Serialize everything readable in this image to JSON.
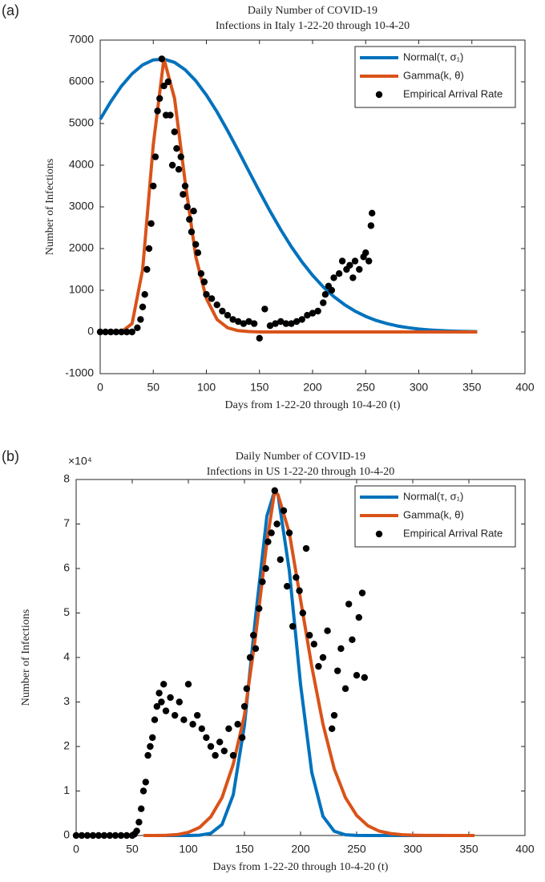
{
  "chart_data": [
    {
      "type": "line",
      "panel": "(a)",
      "title": [
        "Daily Number of COVID-19",
        "Infections in Italy 1-22-20 through 10-4-20"
      ],
      "x_label": "Days from 1-22-20 through 10-4-20 (t)",
      "y_label": "Number of Infections",
      "xlim": [
        0,
        400
      ],
      "xticks": [
        0,
        50,
        100,
        150,
        200,
        250,
        300,
        350,
        400
      ],
      "ylim": [
        -1000,
        7000
      ],
      "yticks": [
        -1000,
        0,
        1000,
        2000,
        3000,
        4000,
        5000,
        6000,
        7000
      ],
      "legend": "upper right",
      "series": [
        {
          "name": "Normal(τ, σ₁)",
          "color": "#0072BD",
          "type": "line",
          "x": [
            0,
            10,
            20,
            30,
            40,
            50,
            60,
            70,
            80,
            90,
            100,
            110,
            120,
            130,
            140,
            150,
            160,
            170,
            180,
            190,
            200,
            210,
            220,
            230,
            240,
            250,
            260,
            270,
            280,
            290,
            300,
            310,
            320,
            330,
            340,
            350,
            355
          ],
          "values": [
            5100,
            5527,
            5896,
            6193,
            6406,
            6525,
            6545,
            6465,
            6289,
            6023,
            5681,
            5277,
            4826,
            4347,
            3855,
            3367,
            2896,
            2452,
            2045,
            1679,
            1358,
            1081,
            848,
            655,
            498,
            373,
            275,
            200,
            143,
            101,
            70,
            48,
            32,
            21,
            14,
            9,
            7
          ]
        },
        {
          "name": "Gamma(k, θ)",
          "color": "#D95319",
          "type": "line",
          "x": [
            0,
            10,
            20,
            30,
            40,
            50,
            60,
            70,
            80,
            90,
            100,
            110,
            120,
            130,
            140,
            150,
            200,
            250,
            300,
            355
          ],
          "values": [
            0,
            0,
            0,
            200,
            1500,
            4500,
            6550,
            5600,
            3600,
            1800,
            800,
            300,
            100,
            30,
            10,
            0,
            0,
            0,
            0,
            0
          ]
        },
        {
          "name": "Empirical Arrival Rate",
          "color": "#000000",
          "type": "scatter",
          "x": [
            0,
            5,
            10,
            15,
            20,
            25,
            30,
            35,
            38,
            40,
            42,
            44,
            46,
            48,
            50,
            52,
            54,
            56,
            58,
            60,
            62,
            64,
            66,
            68,
            70,
            72,
            74,
            76,
            78,
            80,
            82,
            84,
            86,
            88,
            90,
            92,
            95,
            98,
            100,
            105,
            110,
            115,
            120,
            125,
            130,
            135,
            140,
            145,
            150,
            155,
            160,
            165,
            170,
            175,
            180,
            185,
            190,
            195,
            200,
            205,
            210,
            212,
            215,
            218,
            220,
            225,
            228,
            232,
            235,
            238,
            240,
            244,
            248,
            250,
            253,
            255,
            256
          ],
          "values": [
            0,
            0,
            0,
            0,
            0,
            0,
            0,
            100,
            300,
            600,
            900,
            1500,
            2000,
            2600,
            3500,
            4200,
            5300,
            5600,
            6550,
            5900,
            5200,
            6000,
            5200,
            4000,
            4800,
            4400,
            3900,
            4200,
            3300,
            3500,
            3000,
            2700,
            2400,
            2900,
            2100,
            1900,
            1400,
            1200,
            900,
            800,
            650,
            500,
            400,
            300,
            250,
            200,
            250,
            200,
            -150,
            550,
            150,
            200,
            250,
            200,
            200,
            250,
            300,
            400,
            450,
            500,
            700,
            900,
            1100,
            1000,
            1300,
            1400,
            1700,
            1500,
            1600,
            1300,
            1700,
            1500,
            1800,
            1900,
            1700,
            2550,
            2850
          ]
        }
      ]
    },
    {
      "type": "line",
      "panel": "(b)",
      "title": [
        "Daily Number of COVID-19",
        "Infections in US 1-22-20 through 10-4-20"
      ],
      "x_label": "Days from 1-22-20 through 10-4-20 (t)",
      "y_label": "Number of Infections",
      "y_multiplier": "×10⁴",
      "xlim": [
        0,
        400
      ],
      "xticks": [
        0,
        50,
        100,
        150,
        200,
        250,
        300,
        350,
        400
      ],
      "ylim": [
        0,
        80000
      ],
      "yticks": [
        {
          "value": 0,
          "label": "0"
        },
        {
          "value": 10000,
          "label": "1"
        },
        {
          "value": 20000,
          "label": "2"
        },
        {
          "value": 30000,
          "label": "3"
        },
        {
          "value": 40000,
          "label": "4"
        },
        {
          "value": 50000,
          "label": "5"
        },
        {
          "value": 60000,
          "label": "6"
        },
        {
          "value": 70000,
          "label": "7"
        },
        {
          "value": 80000,
          "label": "8"
        }
      ],
      "legend": "upper right",
      "series": [
        {
          "name": "Normal(τ, σ₁)",
          "color": "#0072BD",
          "type": "line",
          "x": [
            60,
            100,
            110,
            120,
            130,
            140,
            150,
            160,
            170,
            177,
            180,
            190,
            200,
            210,
            220,
            230,
            240,
            250,
            260,
            300,
            355
          ],
          "values": [
            0,
            7,
            70,
            480,
            2470,
            9130,
            24800,
            49330,
            71790,
            77500,
            76420,
            59520,
            33940,
            14170,
            4310,
            960,
            157,
            19,
            0,
            0,
            0
          ]
        },
        {
          "name": "Gamma(k, θ)",
          "color": "#D95319",
          "type": "line",
          "x": [
            60,
            70,
            80,
            90,
            100,
            110,
            120,
            130,
            140,
            150,
            160,
            170,
            177,
            180,
            190,
            200,
            210,
            220,
            230,
            240,
            250,
            260,
            270,
            280,
            290,
            300,
            310,
            320,
            330,
            340,
            350,
            355
          ],
          "values": [
            0,
            0,
            50,
            200,
            700,
            1800,
            4200,
            8500,
            16000,
            27000,
            45000,
            66000,
            77500,
            76500,
            68000,
            53000,
            38000,
            25000,
            15000,
            8500,
            4500,
            2200,
            1000,
            450,
            180,
            70,
            25,
            10,
            3,
            1,
            0,
            0
          ]
        },
        {
          "name": "Empirical Arrival Rate",
          "color": "#000000",
          "type": "scatter",
          "x": [
            0,
            5,
            10,
            15,
            20,
            25,
            30,
            35,
            40,
            45,
            50,
            52,
            54,
            56,
            58,
            60,
            62,
            64,
            66,
            68,
            70,
            72,
            74,
            76,
            78,
            80,
            84,
            88,
            92,
            96,
            100,
            104,
            108,
            112,
            116,
            120,
            124,
            128,
            132,
            136,
            140,
            144,
            148,
            150,
            152,
            155,
            158,
            160,
            163,
            166,
            169,
            171,
            174,
            177,
            179,
            182,
            185,
            188,
            190,
            193,
            196,
            199,
            202,
            205,
            208,
            212,
            216,
            220,
            224,
            228,
            230,
            233,
            236,
            240,
            243,
            246,
            250,
            252,
            255,
            257
          ],
          "values": [
            0,
            0,
            0,
            0,
            0,
            0,
            0,
            0,
            0,
            0,
            0,
            300,
            1000,
            3000,
            6000,
            10000,
            12000,
            18000,
            20000,
            22000,
            26000,
            29000,
            32000,
            30000,
            34000,
            28000,
            31000,
            27000,
            30000,
            26000,
            34000,
            25000,
            27000,
            24000,
            22000,
            20000,
            18000,
            21000,
            19000,
            24000,
            18000,
            25000,
            22000,
            29000,
            33000,
            40000,
            45000,
            42000,
            51000,
            57000,
            60000,
            66000,
            68000,
            77500,
            70000,
            62000,
            73000,
            56000,
            68000,
            47000,
            58000,
            55000,
            50000,
            64500,
            45000,
            43000,
            38000,
            40000,
            46000,
            24000,
            27000,
            37000,
            42000,
            33000,
            52000,
            44000,
            36000,
            49000,
            54500,
            35500
          ]
        }
      ]
    }
  ]
}
